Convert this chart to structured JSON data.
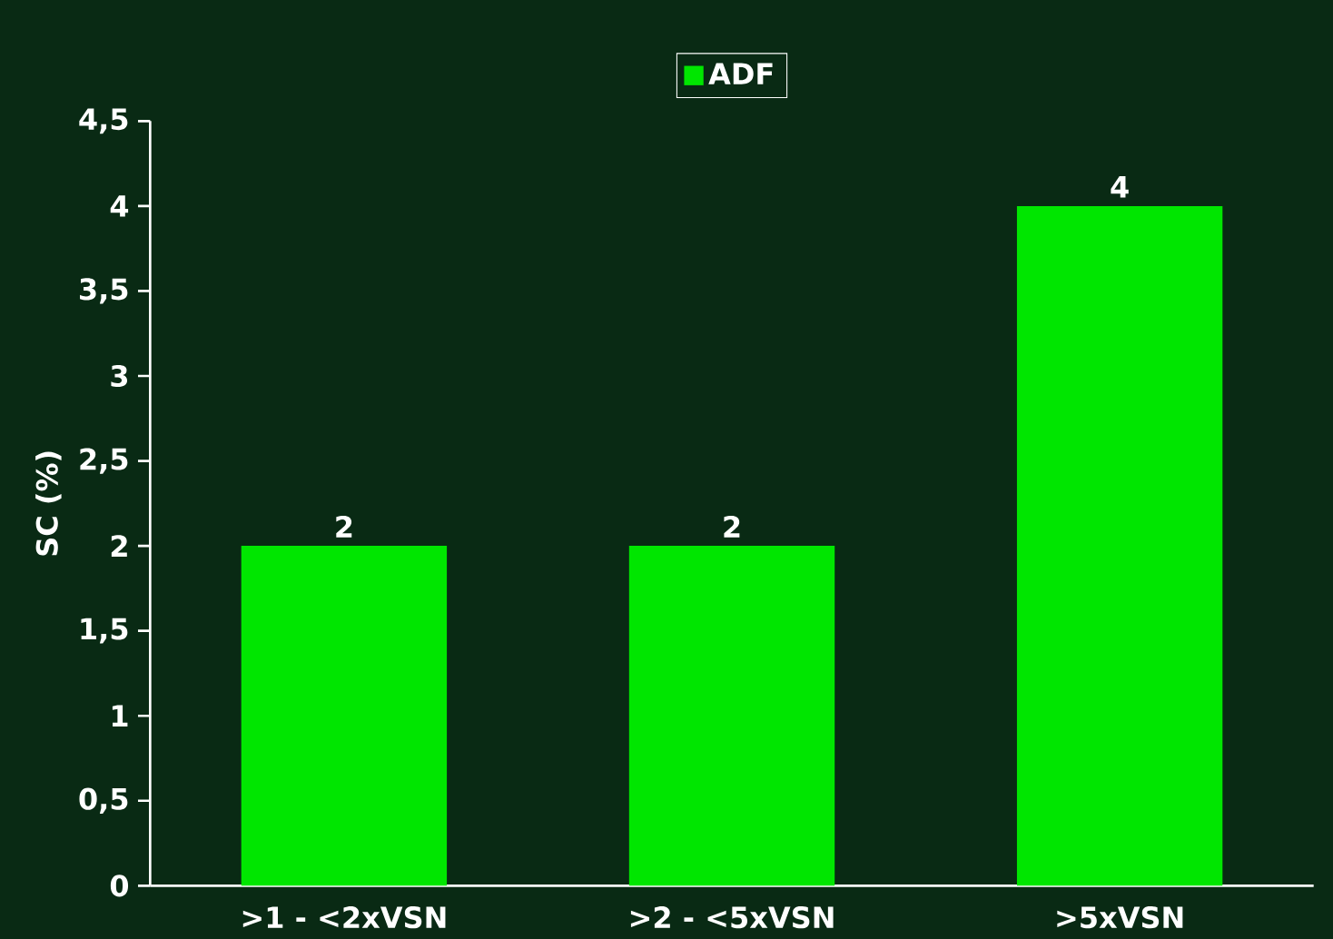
{
  "chart_data": {
    "type": "bar",
    "ylabel": "SC (%)",
    "categories": [
      ">1 - <2xVSN",
      ">2 - <5xVSN",
      ">5xVSN"
    ],
    "series": [
      {
        "name": "ADF",
        "color": "#00e600",
        "values": [
          2,
          2,
          4
        ]
      }
    ],
    "ylim": [
      0,
      4.5
    ],
    "yticks": [
      0,
      {
        "value": 0.5,
        "label": "0,5"
      },
      1,
      {
        "value": 1.5,
        "label": "1,5"
      },
      2,
      {
        "value": 2.5,
        "label": "2,5"
      },
      3,
      {
        "value": 3.5,
        "label": "3,5"
      },
      4,
      {
        "value": 4.5,
        "label": "4,5"
      }
    ],
    "data_labels": true,
    "legend": "top",
    "grid": false
  }
}
